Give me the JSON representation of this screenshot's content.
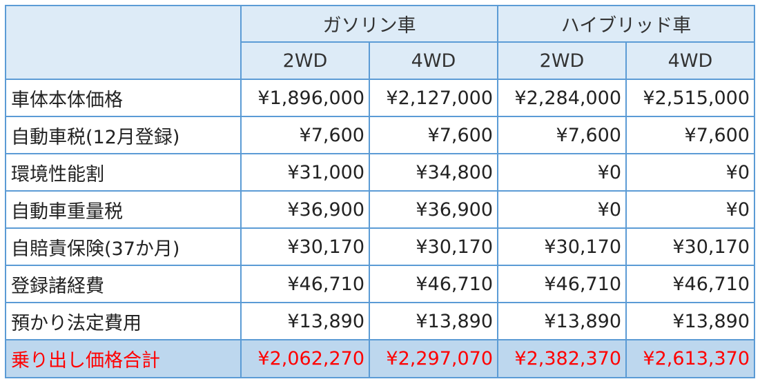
{
  "header": {
    "groups": [
      {
        "label": "ガソリン車"
      },
      {
        "label": "ハイブリッド車"
      }
    ],
    "subheaders": [
      "2WD",
      "4WD",
      "2WD",
      "4WD"
    ]
  },
  "rows": [
    {
      "label": "車体本体価格",
      "values": [
        "¥1,896,000",
        "¥2,127,000",
        "¥2,284,000",
        "¥2,515,000"
      ]
    },
    {
      "label": "自動車税(12月登録)",
      "values": [
        "¥7,600",
        "¥7,600",
        "¥7,600",
        "¥7,600"
      ]
    },
    {
      "label": "環境性能割",
      "values": [
        "¥31,000",
        "¥34,800",
        "¥0",
        "¥0"
      ]
    },
    {
      "label": "自動車重量税",
      "values": [
        "¥36,900",
        "¥36,900",
        "¥0",
        "¥0"
      ]
    },
    {
      "label": "自賠責保険(37か月)",
      "values": [
        "¥30,170",
        "¥30,170",
        "¥30,170",
        "¥30,170"
      ]
    },
    {
      "label": "登録諸経費",
      "values": [
        "¥46,710",
        "¥46,710",
        "¥46,710",
        "¥46,710"
      ]
    },
    {
      "label": "預かり法定費用",
      "values": [
        "¥13,890",
        "¥13,890",
        "¥13,890",
        "¥13,890"
      ]
    }
  ],
  "total": {
    "label": "乗り出し価格合計",
    "values": [
      "¥2,062,270",
      "¥2,297,070",
      "¥2,382,370",
      "¥2,613,370"
    ]
  },
  "colors": {
    "border": "#5b9bd5",
    "header_bg": "#ddebf7",
    "total_bg": "#bdd7ee",
    "total_text": "#ff0000"
  }
}
